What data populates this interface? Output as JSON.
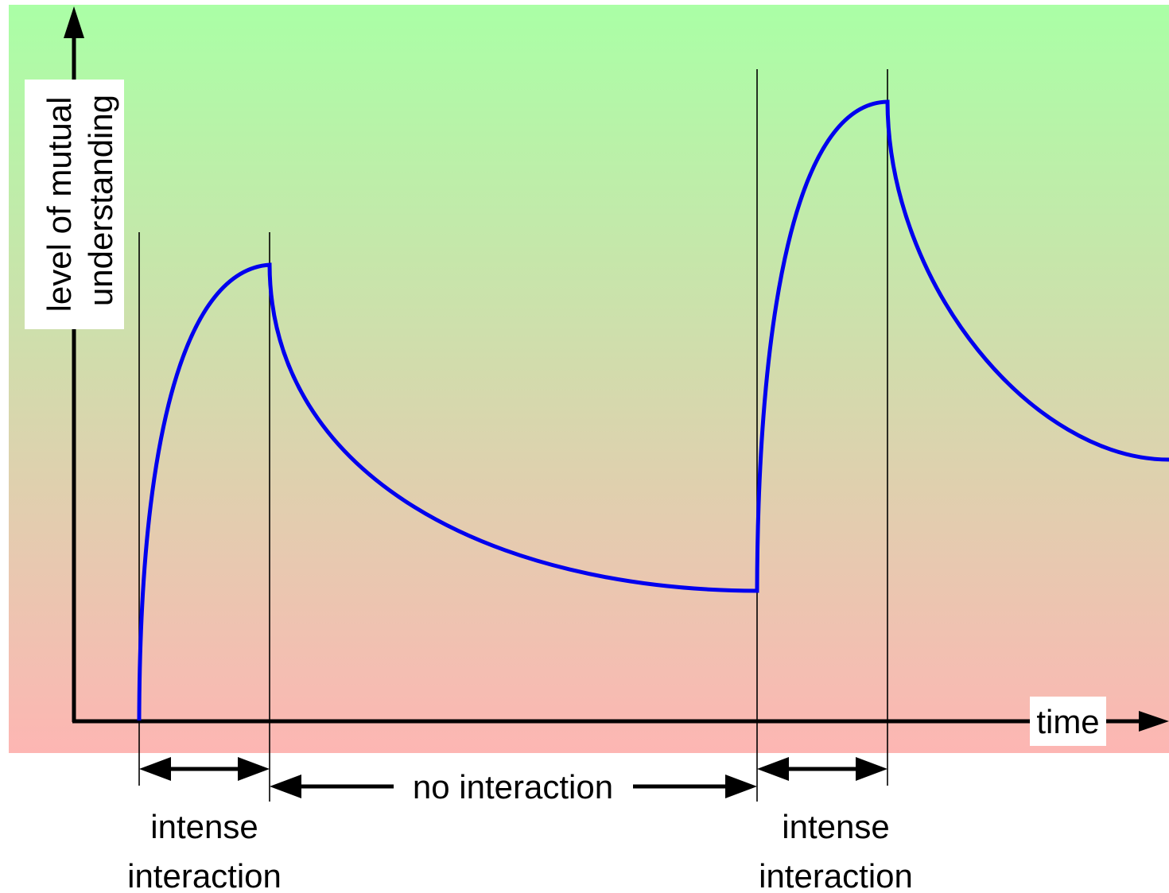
{
  "colors": {
    "background_top": "#aaffa6",
    "background_bottom": "#fdb6b3",
    "curve": "#0000ee",
    "axis": "#000000",
    "label_box": "#ffffff"
  },
  "axes": {
    "y_label_line1": "level of mutual",
    "y_label_line2": "understanding",
    "x_label": "time"
  },
  "annotations": {
    "first_interval": {
      "line1": "intense",
      "line2": "interaction"
    },
    "gap_interval": {
      "label": "no interaction"
    },
    "second_interval": {
      "line1": "intense",
      "line2": "interaction"
    }
  }
}
